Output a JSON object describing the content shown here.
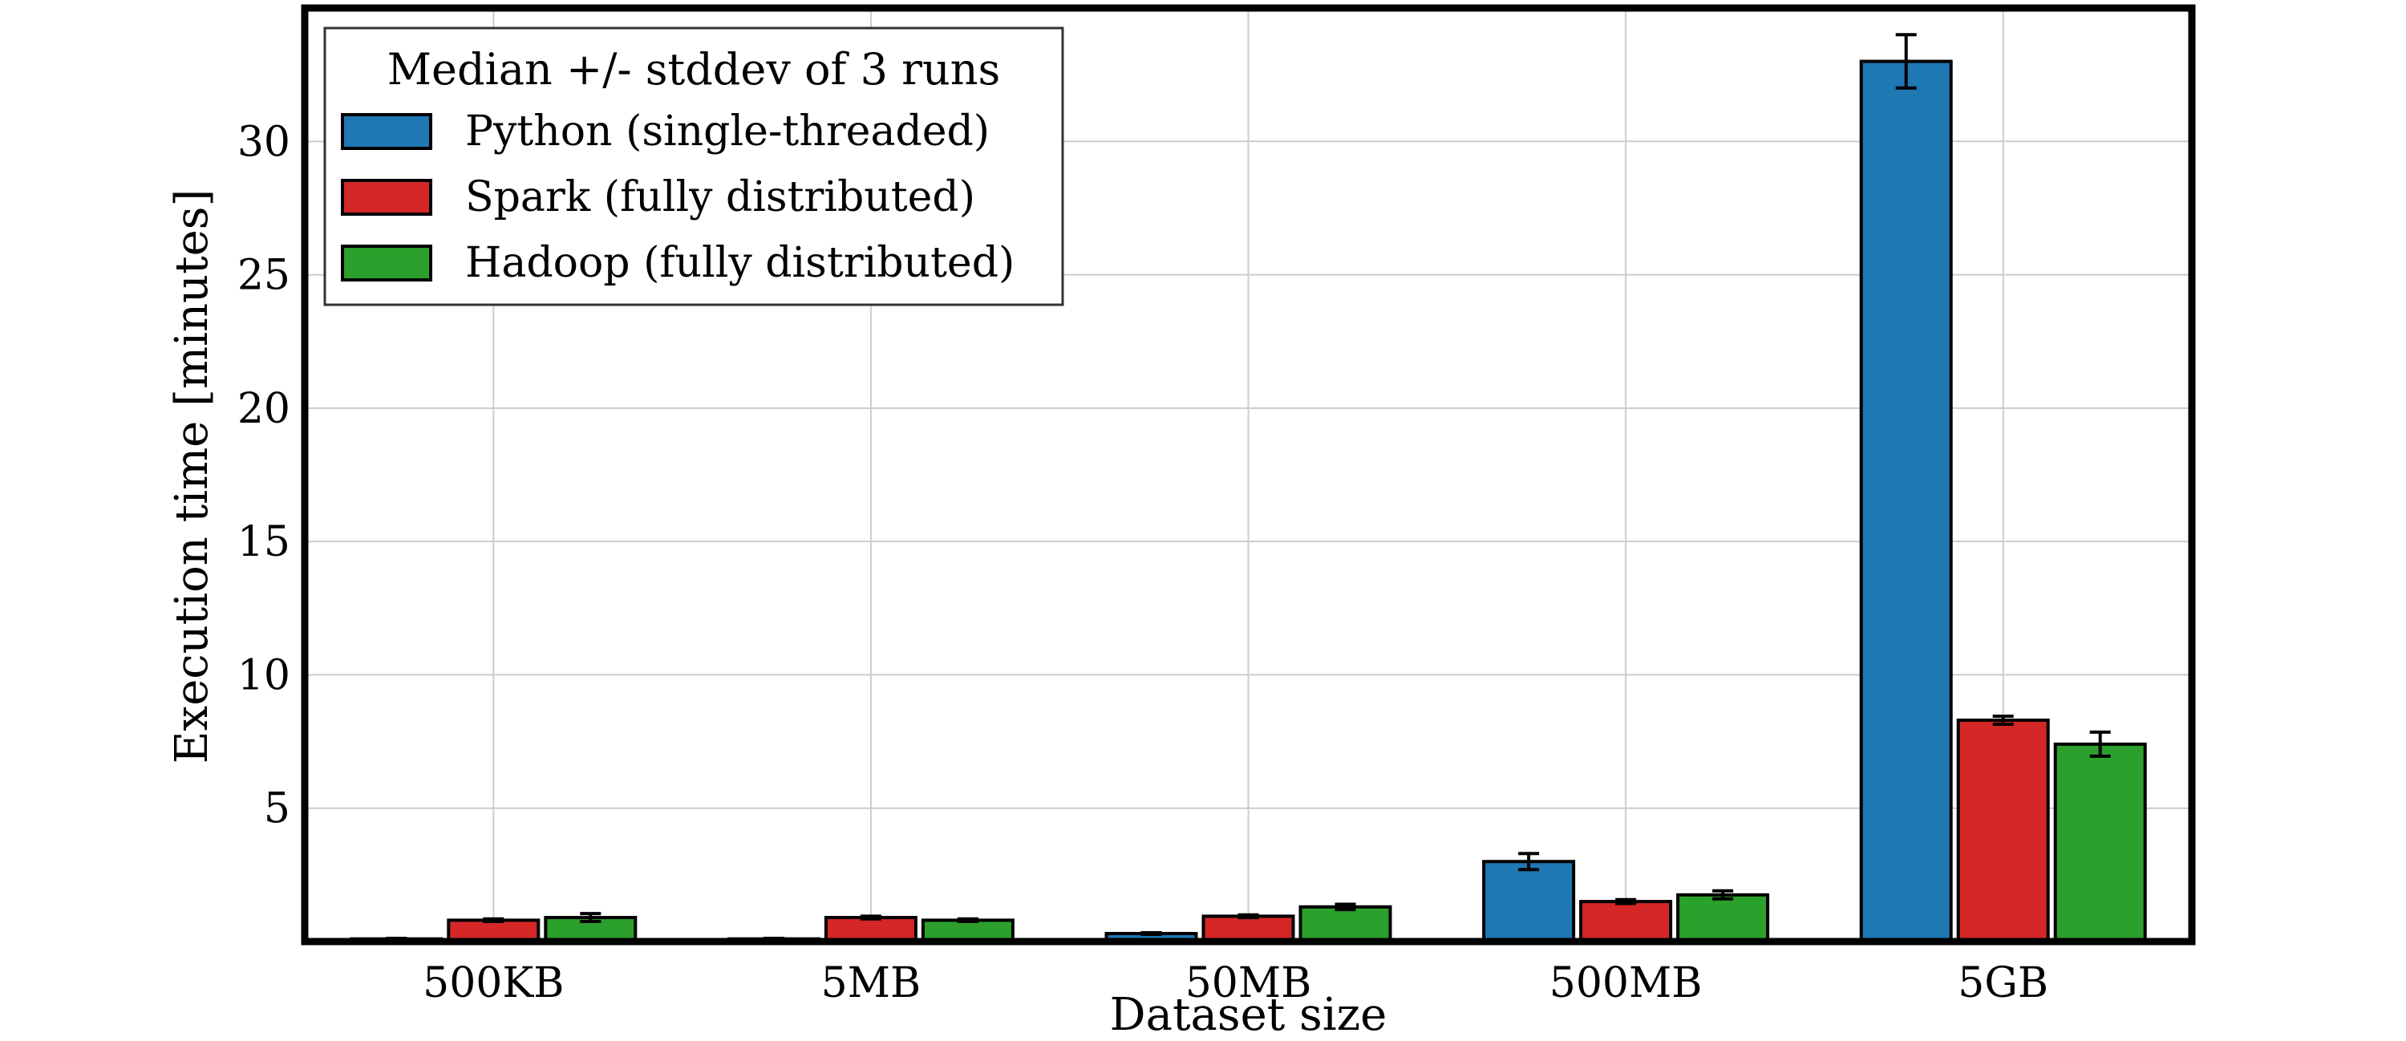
{
  "chart_data": {
    "type": "bar",
    "categories": [
      "500KB",
      "5MB",
      "50MB",
      "500MB",
      "5GB"
    ],
    "series": [
      {
        "name": "Python (single-threaded)",
        "color": "#1f77b4",
        "values": [
          0.1,
          0.1,
          0.3,
          3.0,
          33.0
        ],
        "errors": [
          0.02,
          0.02,
          0.03,
          0.3,
          1.0
        ]
      },
      {
        "name": "Spark (fully distributed)",
        "color": "#d62728",
        "values": [
          0.8,
          0.9,
          0.95,
          1.5,
          8.3
        ],
        "errors": [
          0.05,
          0.05,
          0.05,
          0.07,
          0.15
        ]
      },
      {
        "name": "Hadoop (fully distributed)",
        "color": "#2ca02c",
        "values": [
          0.9,
          0.8,
          1.3,
          1.75,
          7.4
        ],
        "errors": [
          0.15,
          0.05,
          0.1,
          0.15,
          0.45
        ]
      }
    ],
    "title": "",
    "xlabel": "Dataset size",
    "ylabel": "Execution time [minutes]",
    "ylim": [
      0,
      35
    ],
    "yticks": [
      5,
      10,
      15,
      20,
      25,
      30
    ],
    "grid": true,
    "legend_title": "Median +/- stddev of 3 runs",
    "legend_position": "top-left"
  }
}
